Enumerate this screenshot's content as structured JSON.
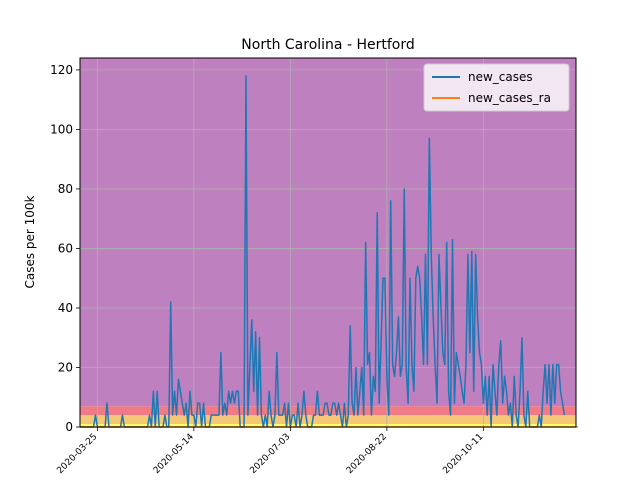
{
  "chart_data": {
    "type": "line",
    "title": "North Carolina - Hertford",
    "xlabel": "",
    "ylabel": "Cases per 100k",
    "x_start": "2020-03-16",
    "xlim": [
      "2020-03-16",
      "2020-11-28"
    ],
    "ylim": [
      0,
      124
    ],
    "x_ticks": [
      "2020-03-25",
      "2020-05-14",
      "2020-07-03",
      "2020-08-22",
      "2020-10-11"
    ],
    "y_ticks": [
      0,
      20,
      40,
      60,
      80,
      100,
      120
    ],
    "grid": true,
    "legend_position": "top-right",
    "bands": [
      {
        "from": 0,
        "to": 1,
        "color": "#ffff66"
      },
      {
        "from": 1,
        "to": 4,
        "color": "#f5c878"
      },
      {
        "from": 4,
        "to": 7,
        "color": "#f07a85"
      },
      {
        "from": 7,
        "to": 124,
        "color": "#bf80bf"
      }
    ],
    "series": [
      {
        "name": "new_cases",
        "color": "#1f77b4",
        "values": [
          0,
          0,
          0,
          0,
          0,
          0,
          0,
          0,
          4,
          0,
          0,
          0,
          0,
          0,
          8,
          0,
          0,
          0,
          0,
          0,
          0,
          0,
          4,
          0,
          0,
          0,
          0,
          0,
          0,
          0,
          0,
          0,
          0,
          0,
          0,
          0,
          4,
          0,
          12,
          0,
          12,
          0,
          0,
          0,
          4,
          0,
          0,
          42,
          4,
          12,
          4,
          16,
          12,
          8,
          4,
          8,
          0,
          12,
          4,
          4,
          0,
          8,
          8,
          0,
          8,
          0,
          0,
          0,
          4,
          4,
          4,
          4,
          4,
          25,
          4,
          8,
          4,
          12,
          8,
          12,
          8,
          12,
          12,
          0,
          0,
          0,
          118,
          4,
          20,
          36,
          12,
          32,
          4,
          30,
          4,
          0,
          4,
          0,
          12,
          4,
          0,
          4,
          25,
          4,
          4,
          4,
          8,
          0,
          8,
          0,
          4,
          4,
          0,
          8,
          0,
          4,
          12,
          4,
          0,
          0,
          0,
          4,
          4,
          12,
          4,
          4,
          4,
          8,
          8,
          4,
          4,
          8,
          8,
          4,
          8,
          4,
          0,
          8,
          0,
          4,
          34,
          8,
          4,
          20,
          4,
          12,
          20,
          4,
          62,
          21,
          25,
          4,
          17,
          12,
          72,
          8,
          28,
          50,
          50,
          17,
          4,
          76,
          21,
          17,
          25,
          37,
          17,
          21,
          80,
          20,
          8,
          50,
          21,
          12,
          50,
          54,
          50,
          37,
          21,
          58,
          21,
          97,
          58,
          37,
          21,
          8,
          58,
          41,
          25,
          21,
          62,
          12,
          4,
          63,
          8,
          25,
          21,
          17,
          12,
          8,
          21,
          58,
          25,
          59,
          12,
          58,
          37,
          25,
          21,
          8,
          17,
          4,
          17,
          0,
          21,
          12,
          4,
          21,
          29,
          8,
          17,
          12,
          4,
          8,
          0,
          17,
          4,
          0,
          12,
          30,
          4,
          0,
          12,
          0,
          0,
          0,
          0,
          0,
          4,
          0,
          12,
          21,
          8,
          21,
          4,
          21,
          8,
          21,
          21,
          12,
          8,
          4
        ]
      },
      {
        "name": "new_cases_ra",
        "color": "#ff7f0e",
        "values": [
          0,
          0,
          0,
          0,
          0,
          0,
          0,
          0,
          0,
          0,
          0,
          0,
          0,
          0,
          0,
          0,
          0,
          0,
          0,
          0,
          0,
          0,
          0,
          0,
          0,
          0,
          0,
          0,
          0,
          0,
          0,
          0,
          0,
          0,
          0,
          0,
          0,
          0,
          0,
          0,
          0,
          0,
          0,
          0,
          0,
          0,
          0,
          0,
          0,
          0,
          0,
          0,
          0,
          0,
          0,
          0,
          0,
          0,
          0,
          0,
          0,
          0,
          0,
          0,
          0,
          0,
          0,
          0,
          0,
          0,
          0,
          0,
          0,
          0,
          0,
          0,
          0,
          0,
          0,
          0,
          0,
          0,
          0,
          0,
          0,
          0,
          0,
          0,
          0,
          0,
          0,
          0,
          0,
          0,
          0,
          0,
          0,
          0,
          0,
          0,
          0,
          0,
          0,
          0,
          0,
          0,
          0,
          0,
          0,
          0,
          0,
          0,
          0,
          0,
          0,
          0,
          0,
          0,
          0,
          0,
          0,
          0,
          0,
          0,
          0,
          0,
          0,
          0,
          0,
          0,
          0,
          0,
          0,
          0,
          0,
          0,
          0,
          0,
          0,
          0,
          0,
          0,
          0,
          0,
          0,
          0,
          0,
          0,
          0,
          0,
          0,
          0,
          0,
          0,
          0,
          0,
          0,
          0,
          0,
          0,
          0,
          0,
          0,
          0,
          0,
          0,
          0,
          0,
          0,
          0,
          0,
          0,
          0,
          0,
          0,
          0,
          0,
          0,
          0,
          0,
          0,
          0,
          0,
          0,
          0,
          0,
          0,
          0,
          0,
          0,
          0,
          0,
          0,
          0,
          0,
          0,
          0,
          0,
          0,
          0,
          0,
          0,
          0,
          0,
          0,
          0,
          0,
          0,
          0,
          0,
          0,
          0,
          0,
          0,
          0,
          0,
          0,
          0,
          0,
          0,
          0,
          0,
          0,
          0,
          0,
          0,
          0,
          0,
          0,
          0,
          0,
          0,
          0,
          0,
          0,
          0,
          0,
          0,
          0,
          0,
          0,
          0,
          0,
          0,
          0,
          0,
          0,
          0,
          0,
          0,
          0,
          0,
          0,
          0,
          0,
          0,
          0,
          0,
          0
        ]
      }
    ]
  }
}
